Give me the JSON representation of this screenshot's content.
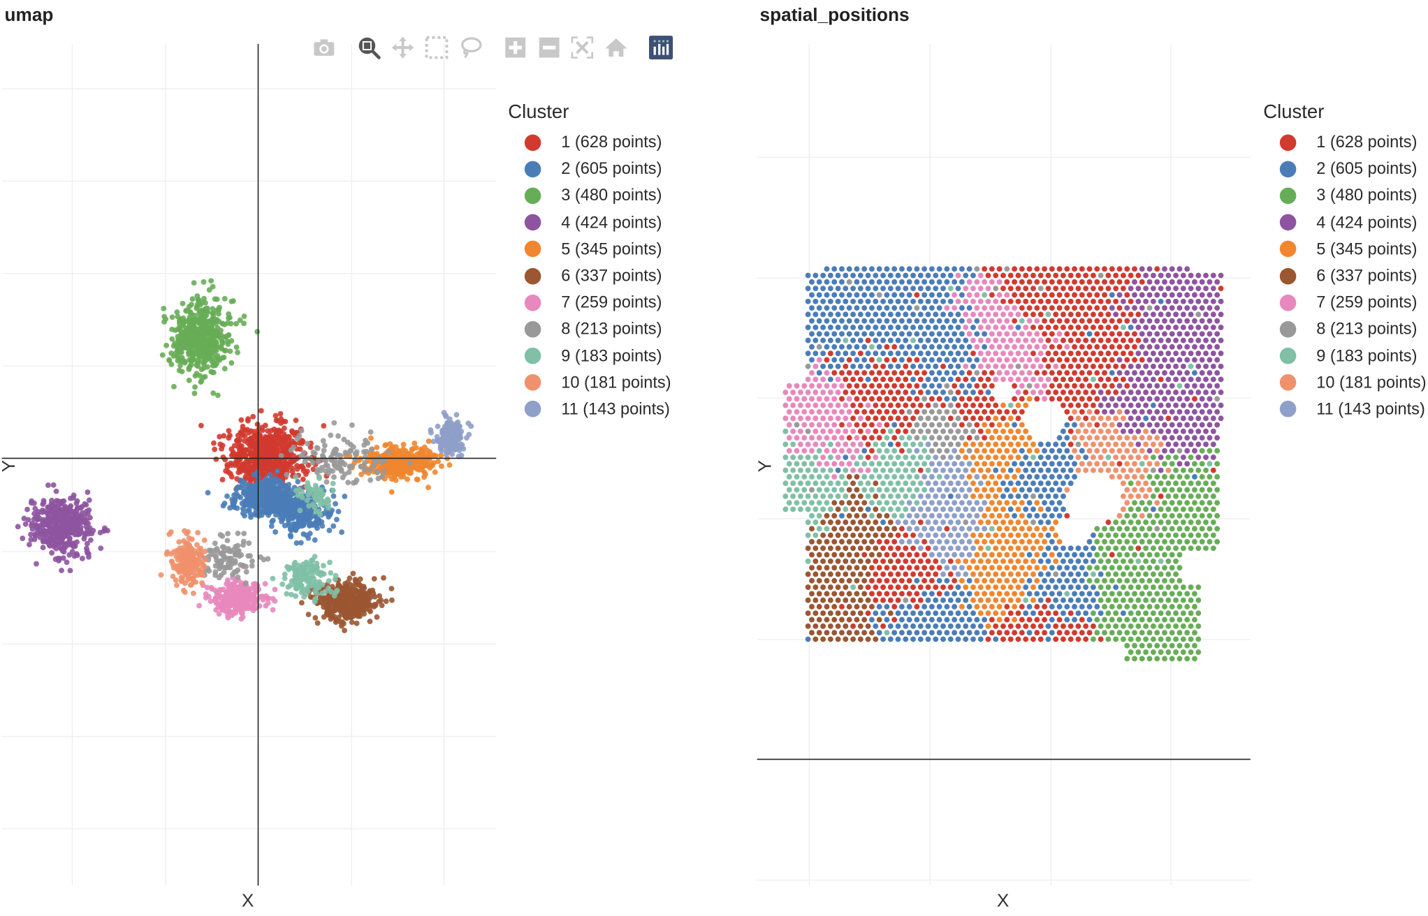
{
  "colors": {
    "grid": "#eeeeee",
    "axis": "#222222",
    "toolbar_icon": "#c8c8c8",
    "toolbar_active": "#555555",
    "plotly_logo": "#3f4f75"
  },
  "toolbar": {
    "items": [
      {
        "name": "camera-icon",
        "label": "Download plot as a png"
      },
      {
        "name": "zoom-icon",
        "label": "Zoom",
        "active": true
      },
      {
        "name": "pan-icon",
        "label": "Pan"
      },
      {
        "name": "box-select-icon",
        "label": "Box Select"
      },
      {
        "name": "lasso-select-icon",
        "label": "Lasso Select"
      },
      {
        "name": "zoom-in-icon",
        "label": "Zoom in"
      },
      {
        "name": "zoom-out-icon",
        "label": "Zoom out"
      },
      {
        "name": "autoscale-icon",
        "label": "Autoscale"
      },
      {
        "name": "reset-axes-icon",
        "label": "Reset axes"
      },
      {
        "name": "plotly-logo-icon",
        "label": "Produced with Plotly"
      }
    ]
  },
  "chart_data": [
    {
      "type": "scatter",
      "title": "umap",
      "xlabel": "X",
      "ylabel": "Y",
      "grid": true,
      "tick_labels": false,
      "legend": {
        "title": "Cluster",
        "placement": "right"
      },
      "series": [
        {
          "name": "1 (628 points)",
          "cluster": "1",
          "count": 628,
          "color": "#d13a2f"
        },
        {
          "name": "2 (605 points)",
          "cluster": "2",
          "count": 605,
          "color": "#4a7db8"
        },
        {
          "name": "3 (480 points)",
          "cluster": "3",
          "count": 480,
          "color": "#67ad57"
        },
        {
          "name": "4 (424 points)",
          "cluster": "4",
          "count": 424,
          "color": "#8e54a0"
        },
        {
          "name": "5 (345 points)",
          "cluster": "5",
          "count": 345,
          "color": "#f0862f"
        },
        {
          "name": "6 (337 points)",
          "cluster": "6",
          "count": 337,
          "color": "#9b5632"
        },
        {
          "name": "7 (259 points)",
          "cluster": "7",
          "count": 259,
          "color": "#e888bd"
        },
        {
          "name": "8 (213 points)",
          "cluster": "8",
          "count": 213,
          "color": "#999999"
        },
        {
          "name": "9 (183 points)",
          "cluster": "9",
          "count": 183,
          "color": "#7fc0a6"
        },
        {
          "name": "10 (181 points)",
          "cluster": "10",
          "count": 181,
          "color": "#ef916d"
        },
        {
          "name": "11 (143 points)",
          "cluster": "11",
          "count": 143,
          "color": "#8e9fc9"
        }
      ]
    },
    {
      "type": "scatter",
      "title": "spatial_positions",
      "xlabel": "X",
      "ylabel": "Y",
      "grid": true,
      "tick_labels": false,
      "legend": {
        "title": "Cluster",
        "placement": "right"
      },
      "series": [
        {
          "name": "1 (628 points)",
          "cluster": "1",
          "count": 628,
          "color": "#d13a2f"
        },
        {
          "name": "2 (605 points)",
          "cluster": "2",
          "count": 605,
          "color": "#4a7db8"
        },
        {
          "name": "3 (480 points)",
          "cluster": "3",
          "count": 480,
          "color": "#67ad57"
        },
        {
          "name": "4 (424 points)",
          "cluster": "4",
          "count": 424,
          "color": "#8e54a0"
        },
        {
          "name": "5 (345 points)",
          "cluster": "5",
          "count": 345,
          "color": "#f0862f"
        },
        {
          "name": "6 (337 points)",
          "cluster": "6",
          "count": 337,
          "color": "#9b5632"
        },
        {
          "name": "7 (259 points)",
          "cluster": "7",
          "count": 259,
          "color": "#e888bd"
        },
        {
          "name": "8 (213 points)",
          "cluster": "8",
          "count": 213,
          "color": "#999999"
        },
        {
          "name": "9 (183 points)",
          "cluster": "9",
          "count": 183,
          "color": "#7fc0a6"
        },
        {
          "name": "10 (181 points)",
          "cluster": "10",
          "count": 181,
          "color": "#ef916d"
        },
        {
          "name": "11 (143 points)",
          "cluster": "11",
          "count": 143,
          "color": "#8e9fc9"
        }
      ]
    }
  ]
}
